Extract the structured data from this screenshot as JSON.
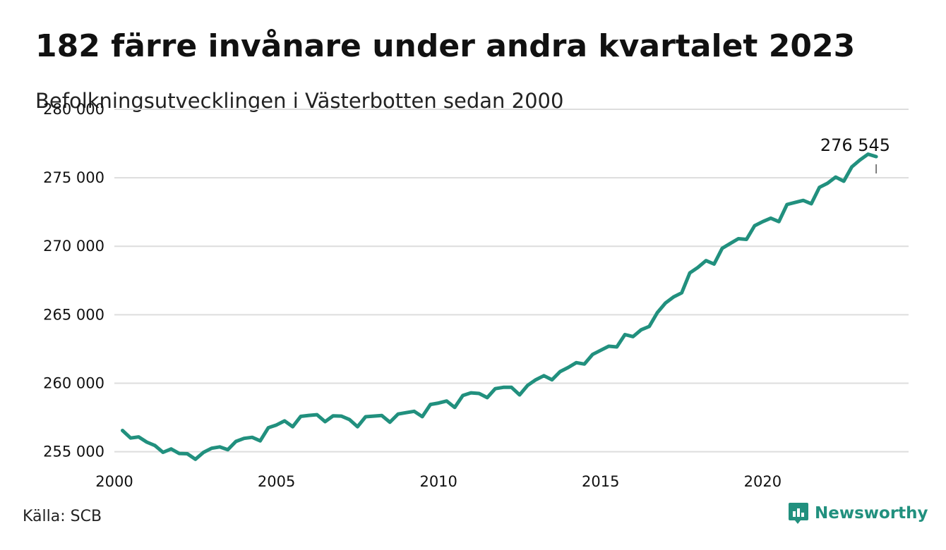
{
  "title": "182 färre invånare under andra kvartalet 2023",
  "subtitle": "Befolkningsutvecklingen i Västerbotten sedan 2000",
  "source": "Källa: SCB",
  "brand": {
    "name": "Newsworthy",
    "icon": "newsworthy-logo-icon",
    "color": "#21907e"
  },
  "colors": {
    "line": "#21907e",
    "grid": "#dddddd",
    "text": "#111111"
  },
  "chart_data": {
    "type": "line",
    "title": "182 färre invånare under andra kvartalet 2023",
    "subtitle": "Befolkningsutvecklingen i Västerbotten sedan 2000",
    "xlabel": "",
    "ylabel": "",
    "xlim": [
      2000,
      2024.5
    ],
    "ylim": [
      254000,
      280000
    ],
    "xticks": [
      2000,
      2005,
      2010,
      2015,
      2020
    ],
    "xtick_labels": [
      "2000",
      "2005",
      "2010",
      "2015",
      "2020"
    ],
    "yticks": [
      255000,
      260000,
      265000,
      270000,
      275000,
      280000
    ],
    "ytick_labels": [
      "255 000",
      "260 000",
      "265 000",
      "270 000",
      "275 000",
      "280 000"
    ],
    "grid": true,
    "annotation": {
      "text": "276 545",
      "x": 2023.5,
      "y": 276545
    },
    "series": [
      {
        "x": [
          2000.25,
          2000.5,
          2000.75,
          2001.0,
          2001.25,
          2001.5,
          2001.75,
          2002.0,
          2002.25,
          2002.5,
          2002.75,
          2003.0,
          2003.25,
          2003.5,
          2003.75,
          2004.0,
          2004.25,
          2004.5,
          2004.75,
          2005.0,
          2005.25,
          2005.5,
          2005.75,
          2006.0,
          2006.25,
          2006.5,
          2006.75,
          2007.0,
          2007.25,
          2007.5,
          2007.75,
          2008.0,
          2008.25,
          2008.5,
          2008.75,
          2009.0,
          2009.25,
          2009.5,
          2009.75,
          2010.0,
          2010.25,
          2010.5,
          2010.75,
          2011.0,
          2011.25,
          2011.5,
          2011.75,
          2012.0,
          2012.25,
          2012.5,
          2012.75,
          2013.0,
          2013.25,
          2013.5,
          2013.75,
          2014.0,
          2014.25,
          2014.5,
          2014.75,
          2015.0,
          2015.25,
          2015.5,
          2015.75,
          2016.0,
          2016.25,
          2016.5,
          2016.75,
          2017.0,
          2017.25,
          2017.5,
          2017.75,
          2018.0,
          2018.25,
          2018.5,
          2018.75,
          2019.0,
          2019.25,
          2019.5,
          2019.75,
          2020.0,
          2020.25,
          2020.5,
          2020.75,
          2021.0,
          2021.25,
          2021.5,
          2021.75,
          2022.0,
          2022.25,
          2022.5,
          2022.75,
          2023.0,
          2023.25,
          2023.5
        ],
        "values": [
          256550,
          256000,
          256080,
          255700,
          255450,
          254950,
          255200,
          254870,
          254850,
          254450,
          254950,
          255250,
          255350,
          255150,
          255750,
          255970,
          256050,
          255790,
          256750,
          256950,
          257250,
          256820,
          257580,
          257650,
          257700,
          257190,
          257620,
          257600,
          257350,
          256820,
          257550,
          257600,
          257640,
          257150,
          257750,
          257850,
          257950,
          257560,
          258450,
          258550,
          258700,
          258230,
          259100,
          259300,
          259250,
          258950,
          259600,
          259700,
          259700,
          259150,
          259850,
          260250,
          260550,
          260250,
          260850,
          261150,
          261500,
          261400,
          262100,
          262400,
          262700,
          262650,
          263550,
          263400,
          263900,
          264150,
          265150,
          265850,
          266300,
          266600,
          268050,
          268450,
          268950,
          268700,
          269850,
          270200,
          270550,
          270500,
          271500,
          271800,
          272050,
          271800,
          273050,
          273200,
          273350,
          273100,
          274300,
          274600,
          275050,
          274750,
          275800,
          276300,
          276727,
          276545
        ]
      }
    ]
  }
}
